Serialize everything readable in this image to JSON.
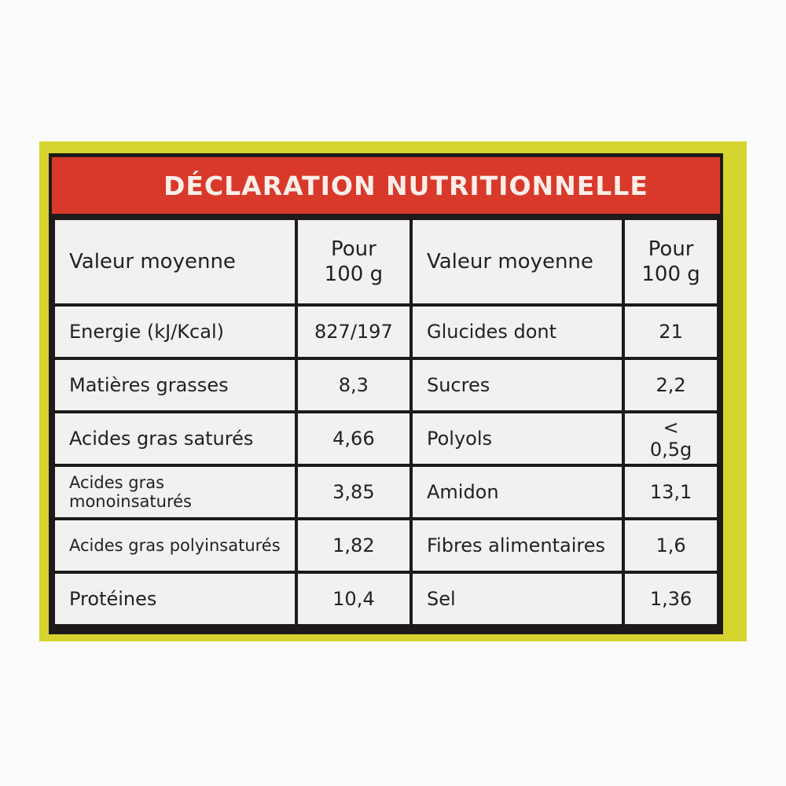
{
  "title": "DÉCLARATION NUTRITIONNELLE",
  "headers": {
    "label": "Valeur moyenne",
    "per_line1": "Pour",
    "per_line2": "100 g"
  },
  "rows": [
    {
      "left_label": "Energie (kJ/Kcal)",
      "left_value": "827/197",
      "right_label": "Glucides dont",
      "right_value": "21"
    },
    {
      "left_label": "Matières grasses",
      "left_value": "8,3",
      "right_label": "Sucres",
      "right_value": "2,2"
    },
    {
      "left_label": "Acides gras saturés",
      "left_value": "4,66",
      "right_label": "Polyols",
      "right_value": "< 0,5g"
    },
    {
      "left_label": "Acides gras monoinsaturés",
      "left_value": "3,85",
      "right_label": "Amidon",
      "right_value": "13,1"
    },
    {
      "left_label": "Acides gras polyinsaturés",
      "left_value": "1,82",
      "right_label": "Fibres alimentaires",
      "right_value": "1,6"
    },
    {
      "left_label": "Protéines",
      "left_value": "10,4",
      "right_label": "Sel",
      "right_value": "1,36"
    }
  ],
  "colors": {
    "header_red": "#d8392b",
    "packaging_yellow": "#d6d42e",
    "cell_bg": "#f1f1f1",
    "border": "#1e1a1a"
  }
}
